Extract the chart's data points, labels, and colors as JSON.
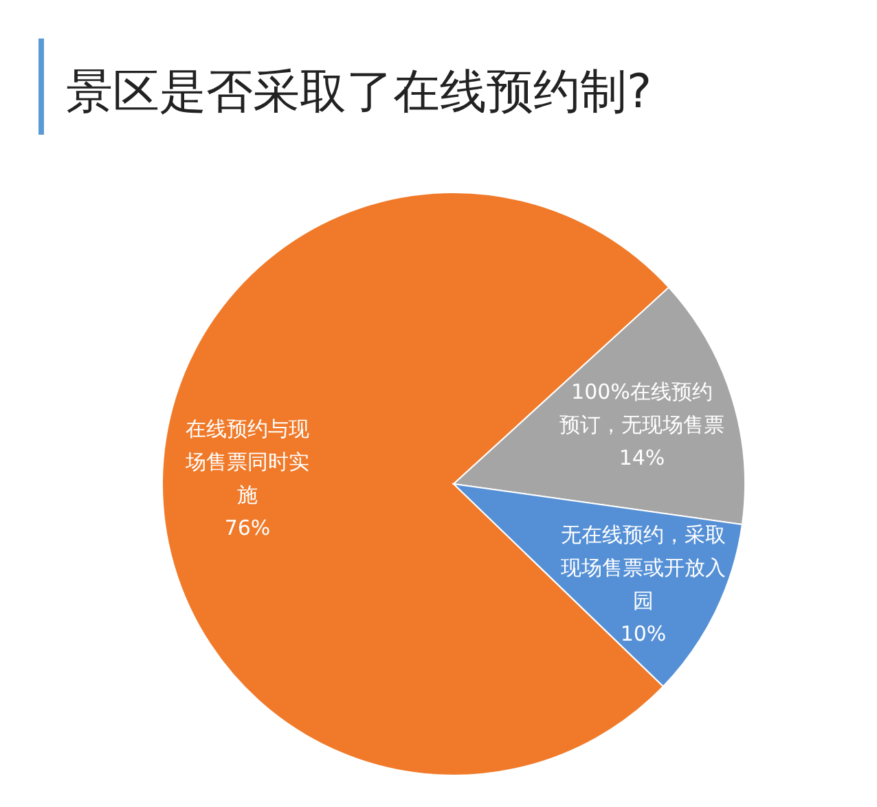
{
  "chart_data": {
    "type": "pie",
    "title": "景区是否采取了在线预约制?",
    "categories": [
      "在线预约与现场售票同时实施",
      "100%在线预约预订，无现场售票",
      "无在线预约，采取现场售票或开放入园"
    ],
    "values": [
      76,
      14,
      10
    ],
    "value_labels": [
      "76%",
      "14%",
      "10%"
    ],
    "colors": [
      "#f07a2a",
      "#a5a5a5",
      "#5590d6"
    ]
  }
}
